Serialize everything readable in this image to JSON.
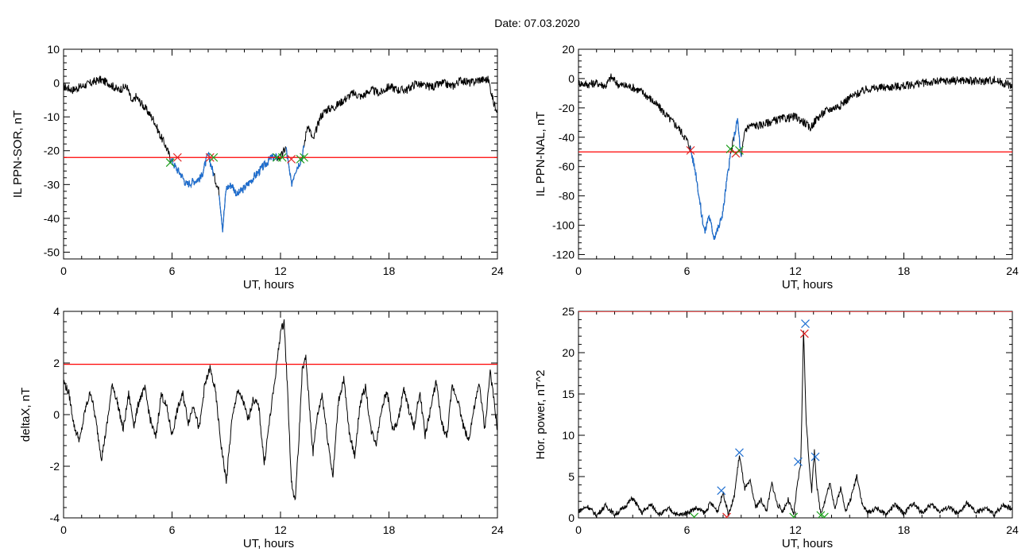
{
  "page_title": "Date:  07.03.2020",
  "colors": {
    "axis": "#000000",
    "trace": "#000000",
    "segment": "#1f6fd1",
    "threshold": "#ff0000",
    "marker_green": "#1a9e1a",
    "marker_red": "#e02020",
    "marker_blue": "#1f6fd1"
  },
  "chart_data": [
    {
      "id": "il-ppn-sor",
      "type": "line",
      "title": "",
      "xlabel": "UT, hours",
      "ylabel": "IL PPN-SOR, nT",
      "xlim": [
        0,
        24
      ],
      "ylim": [
        -52,
        10
      ],
      "xticks": [
        0,
        6,
        12,
        18,
        24
      ],
      "yticks": [
        10,
        0,
        -10,
        -20,
        -30,
        -40,
        -50
      ],
      "grid": false,
      "threshold": -22,
      "series": [
        {
          "role": "trace",
          "color": "#000000",
          "x": [
            0,
            0.5,
            1,
            1.5,
            2,
            2.5,
            3,
            3.5,
            3.8,
            4,
            4.3,
            4.6,
            5,
            5.3,
            5.6,
            5.9,
            6.2,
            6.5,
            6.8,
            7.2,
            7.6,
            8,
            8.3,
            8.6,
            8.8,
            9,
            9.3,
            9.6,
            10,
            10.5,
            11,
            11.5,
            12,
            12.3,
            12.6,
            12.8,
            13.2,
            13.5,
            13.8,
            14.2,
            14.5,
            15,
            15.5,
            16,
            16.5,
            17,
            17.5,
            18,
            18.5,
            19,
            19.5,
            20,
            20.5,
            21,
            21.5,
            22,
            22.5,
            23,
            23.5,
            23.8,
            24
          ],
          "y": [
            -1,
            -2,
            -1,
            0,
            1,
            0,
            -2,
            -1,
            -6,
            -4,
            -6,
            -8,
            -11,
            -15,
            -18,
            -22,
            -25,
            -27,
            -30,
            -29,
            -28,
            -21,
            -27,
            -32,
            -43,
            -31,
            -30,
            -33,
            -31,
            -28,
            -25,
            -22,
            -22,
            -19,
            -30,
            -26,
            -22,
            -12,
            -17,
            -10,
            -8,
            -7,
            -5,
            -3,
            -4,
            -2,
            -3,
            -1,
            -2,
            -2,
            0,
            -1,
            -1,
            0,
            -1,
            1,
            0,
            1,
            1,
            -6,
            -8
          ]
        },
        {
          "role": "segment",
          "color": "#1f6fd1",
          "range": [
            5.9,
            8.3
          ]
        },
        {
          "role": "segment",
          "color": "#1f6fd1",
          "range": [
            8.6,
            11.8
          ]
        },
        {
          "role": "segment",
          "color": "#1f6fd1",
          "range": [
            12.3,
            13.3
          ]
        }
      ],
      "markers": [
        {
          "x": 5.9,
          "y": -23.5,
          "color": "green"
        },
        {
          "x": 6.3,
          "y": -22,
          "color": "red"
        },
        {
          "x": 8.1,
          "y": -22,
          "color": "red"
        },
        {
          "x": 8.3,
          "y": -22,
          "color": "green"
        },
        {
          "x": 11.8,
          "y": -22,
          "color": "green"
        },
        {
          "x": 12.1,
          "y": -22,
          "color": "green"
        },
        {
          "x": 12.6,
          "y": -22.5,
          "color": "red"
        },
        {
          "x": 13.1,
          "y": -22.5,
          "color": "green"
        },
        {
          "x": 13.3,
          "y": -22,
          "color": "green"
        }
      ]
    },
    {
      "id": "il-ppn-nal",
      "type": "line",
      "title": "",
      "xlabel": "UT, hours",
      "ylabel": "IL PPN-NAL, nT",
      "xlim": [
        0,
        24
      ],
      "ylim": [
        -123,
        20
      ],
      "xticks": [
        0,
        6,
        12,
        18,
        24
      ],
      "yticks": [
        20,
        0,
        -20,
        -40,
        -60,
        -80,
        -100,
        -120
      ],
      "grid": false,
      "threshold": -50,
      "series": [
        {
          "role": "trace",
          "color": "#000000",
          "x": [
            0,
            0.5,
            1,
            1.5,
            1.8,
            2.2,
            3,
            3.5,
            4,
            4.5,
            5,
            5.5,
            6,
            6.2,
            6.5,
            6.8,
            7,
            7.2,
            7.5,
            7.8,
            8,
            8.2,
            8.4,
            8.6,
            8.8,
            9,
            9.2,
            9.5,
            10,
            10.5,
            11,
            11.5,
            12,
            12.5,
            12.8,
            13.2,
            13.7,
            14.5,
            15,
            15.5,
            16,
            17,
            18,
            19,
            20,
            21,
            22,
            23,
            23.5,
            24
          ],
          "y": [
            -3,
            -4,
            -3,
            -5,
            1,
            -4,
            -6,
            -9,
            -14,
            -20,
            -27,
            -33,
            -42,
            -48,
            -65,
            -92,
            -105,
            -93,
            -108,
            -100,
            -90,
            -70,
            -53,
            -40,
            -28,
            -55,
            -35,
            -32,
            -32,
            -30,
            -28,
            -27,
            -26,
            -30,
            -34,
            -27,
            -22,
            -18,
            -13,
            -10,
            -7,
            -6,
            -5,
            -3,
            -2,
            -1,
            -2,
            -1,
            -3,
            -5
          ]
        },
        {
          "role": "segment",
          "color": "#1f6fd1",
          "range": [
            6.2,
            8.4
          ]
        },
        {
          "role": "segment",
          "color": "#1f6fd1",
          "range": [
            8.6,
            9.0
          ]
        }
      ],
      "markers": [
        {
          "x": 6.2,
          "y": -49,
          "color": "red"
        },
        {
          "x": 8.4,
          "y": -48,
          "color": "green"
        },
        {
          "x": 8.7,
          "y": -51,
          "color": "red"
        },
        {
          "x": 8.9,
          "y": -49,
          "color": "green"
        }
      ]
    },
    {
      "id": "deltax",
      "type": "line",
      "title": "",
      "xlabel": "UT, hours",
      "ylabel": "deltaX, nT",
      "xlim": [
        0,
        24
      ],
      "ylim": [
        -4,
        4
      ],
      "xticks": [
        0,
        6,
        12,
        18,
        24
      ],
      "yticks": [
        4,
        2,
        0,
        -2,
        -4
      ],
      "grid": false,
      "threshold": 1.95,
      "series": [
        {
          "role": "trace",
          "color": "#000000",
          "x": [
            0,
            0.3,
            0.6,
            0.9,
            1.2,
            1.5,
            1.8,
            2.1,
            2.4,
            2.7,
            3,
            3.3,
            3.6,
            3.9,
            4.2,
            4.5,
            4.8,
            5.1,
            5.4,
            5.7,
            6,
            6.3,
            6.6,
            6.9,
            7.2,
            7.5,
            7.8,
            8.1,
            8.4,
            8.7,
            9,
            9.3,
            9.6,
            9.9,
            10.2,
            10.5,
            10.8,
            11.1,
            11.4,
            11.7,
            12,
            12.2,
            12.4,
            12.6,
            12.8,
            13,
            13.2,
            13.4,
            13.6,
            13.8,
            14,
            14.3,
            14.6,
            14.9,
            15.2,
            15.5,
            15.8,
            16.1,
            16.4,
            16.7,
            17,
            17.3,
            17.6,
            17.9,
            18.2,
            18.5,
            18.8,
            19.1,
            19.4,
            19.7,
            20,
            20.3,
            20.6,
            20.9,
            21.2,
            21.5,
            21.8,
            22.1,
            22.4,
            22.7,
            23,
            23.3,
            23.6,
            24
          ],
          "y": [
            1.3,
            0.8,
            -0.5,
            -1,
            0.2,
            0.9,
            -0.3,
            -1.7,
            -0.4,
            1.2,
            0.4,
            -0.6,
            0.8,
            -0.4,
            0.6,
            1,
            -0.2,
            -0.9,
            0.8,
            0.3,
            -0.8,
            0.2,
            0.8,
            -0.3,
            0.4,
            -0.6,
            1.1,
            1.8,
            0.9,
            -1.1,
            -2.6,
            -0.3,
            0.9,
            0.6,
            -0.2,
            0.6,
            0.3,
            -1.9,
            -0.2,
            1.4,
            3.2,
            3.6,
            0.8,
            -2.6,
            -3.4,
            -1.2,
            1.7,
            2.2,
            0.3,
            -1.5,
            -0.2,
            0.8,
            -0.9,
            -2.4,
            0.5,
            1.4,
            -0.7,
            -1.6,
            0.4,
            1.1,
            -0.6,
            -1.1,
            0.3,
            0.9,
            -0.6,
            -0.3,
            1,
            0.2,
            -0.5,
            0.9,
            -0.8,
            0.2,
            1.3,
            -0.3,
            -0.9,
            1.1,
            0.6,
            -0.4,
            -1,
            0.2,
            1.2,
            -0.6,
            1.7,
            -0.6
          ]
        }
      ],
      "markers": []
    },
    {
      "id": "hor-power",
      "type": "line",
      "title": "",
      "xlabel": "UT, hours",
      "ylabel": "Hor. power, nT^2",
      "xlim": [
        0,
        24
      ],
      "ylim": [
        0,
        25
      ],
      "xticks": [
        0,
        6,
        12,
        18,
        24
      ],
      "yticks": [
        0,
        5,
        10,
        15,
        20,
        25
      ],
      "grid": false,
      "threshold": 25,
      "series": [
        {
          "role": "trace",
          "color": "#000000",
          "x": [
            0,
            0.5,
            1,
            1.5,
            2,
            2.5,
            3,
            3.5,
            4,
            4.5,
            5,
            5.5,
            6,
            6.5,
            7,
            7.3,
            7.7,
            8,
            8.3,
            8.6,
            8.9,
            9.2,
            9.5,
            9.8,
            10.1,
            10.4,
            10.7,
            11,
            11.3,
            11.6,
            11.9,
            12.1,
            12.3,
            12.45,
            12.6,
            12.75,
            12.9,
            13.05,
            13.2,
            13.4,
            13.6,
            13.9,
            14.2,
            14.5,
            14.8,
            15.1,
            15.4,
            15.7,
            16,
            16.5,
            17,
            17.5,
            18,
            18.5,
            19,
            19.5,
            20,
            20.5,
            21,
            21.5,
            22,
            22.5,
            23,
            23.5,
            24
          ],
          "y": [
            0.8,
            1.4,
            0.3,
            1.5,
            0.4,
            1.2,
            2.4,
            0.6,
            1.6,
            0.4,
            1.1,
            0.3,
            0.6,
            1.2,
            0.6,
            1.8,
            0.8,
            3.1,
            0.4,
            2.4,
            7.6,
            3.5,
            4.4,
            1.3,
            2.2,
            0.8,
            4.2,
            1.6,
            0.8,
            2.2,
            0.4,
            3.8,
            6.8,
            22.8,
            11.5,
            7,
            3.2,
            8.1,
            3.5,
            0.6,
            1.8,
            4.2,
            1.2,
            3.6,
            0.8,
            2.6,
            5.2,
            1.6,
            0.6,
            1.2,
            0.4,
            1.6,
            0.5,
            1.8,
            0.6,
            1.6,
            0.8,
            1.3,
            0.4,
            1.8,
            0.6,
            1.2,
            0.4,
            1.6,
            1.1
          ]
        }
      ],
      "markers": [
        {
          "x": 6.4,
          "y": 0.1,
          "color": "green"
        },
        {
          "x": 7.9,
          "y": 3.3,
          "color": "blue"
        },
        {
          "x": 8.2,
          "y": 0.1,
          "color": "red"
        },
        {
          "x": 8.9,
          "y": 7.9,
          "color": "blue"
        },
        {
          "x": 11.9,
          "y": 0.1,
          "color": "green"
        },
        {
          "x": 12.15,
          "y": 6.8,
          "color": "blue"
        },
        {
          "x": 12.55,
          "y": 23.5,
          "color": "blue"
        },
        {
          "x": 12.5,
          "y": 22.3,
          "color": "red"
        },
        {
          "x": 13.1,
          "y": 7.4,
          "color": "blue"
        },
        {
          "x": 13.4,
          "y": 0.3,
          "color": "green"
        },
        {
          "x": 13.6,
          "y": 0.1,
          "color": "green"
        }
      ]
    }
  ]
}
